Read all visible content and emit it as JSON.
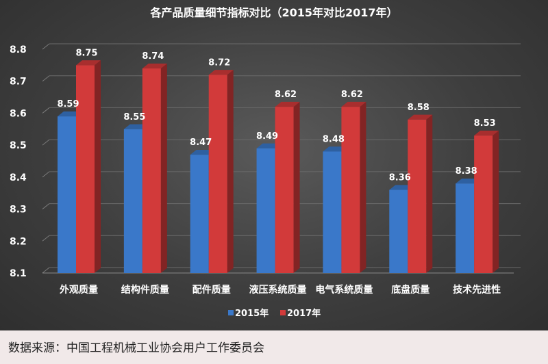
{
  "chart_data": {
    "type": "bar",
    "title": "各产品质量细节指标对比（2015年对比2017年）",
    "categories": [
      "外观质量",
      "结构件质量",
      "配件质量",
      "液压系统质量",
      "电气系统质量",
      "底盘质量",
      "技术先进性"
    ],
    "series": [
      {
        "name": "2015年",
        "values": [
          8.59,
          8.55,
          8.47,
          8.49,
          8.48,
          8.36,
          8.38
        ],
        "color": "#3a78c9"
      },
      {
        "name": "2017年",
        "values": [
          8.75,
          8.74,
          8.72,
          8.62,
          8.62,
          8.58,
          8.53
        ],
        "color": "#d23a3a"
      }
    ],
    "yticks": [
      "8.1",
      "8.2",
      "8.3",
      "8.4",
      "8.5",
      "8.6",
      "8.7",
      "8.8"
    ],
    "ylim": [
      8.1,
      8.8
    ],
    "grid": true,
    "legend": "bottom-center"
  },
  "source": {
    "text": "数据来源：中国工程机械工业协会用户工作委员会"
  }
}
